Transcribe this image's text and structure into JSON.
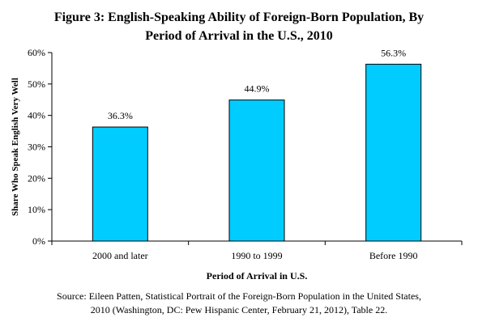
{
  "chart_data": {
    "type": "bar",
    "title_lines": [
      "Figure 3: English-Speaking Ability of Foreign-Born Population, By",
      "Period of Arrival in the U.S., 2010"
    ],
    "categories": [
      "2000 and later",
      "1990 to 1999",
      "Before 1990"
    ],
    "values": [
      36.3,
      44.9,
      56.3
    ],
    "data_labels": [
      "36.3%",
      "44.9%",
      "56.3%"
    ],
    "xlabel": "Period of Arrival in U.S.",
    "ylabel": "Share Who Speak English Very Well",
    "ylim": [
      0,
      60
    ],
    "yticks": [
      0,
      10,
      20,
      30,
      40,
      50,
      60
    ],
    "ytick_labels": [
      "0%",
      "10%",
      "20%",
      "30%",
      "40%",
      "50%",
      "60%"
    ],
    "grid": false,
    "legend": "none",
    "bar_color": "#00CCFF",
    "bar_edge_color": "#000000",
    "source_lines": [
      "Source: Eileen Patten, Statistical Portrait of the Foreign-Born Population in the United States,",
      "2010 (Washington, DC: Pew Hispanic Center, February 21, 2012), Table 22."
    ]
  }
}
